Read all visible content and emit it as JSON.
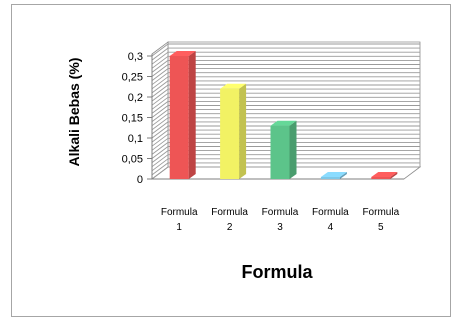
{
  "chart_data": {
    "type": "bar",
    "title": "",
    "xlabel": "Formula",
    "ylabel": "Alkali Bebas (%)",
    "ylim": [
      0,
      0.3
    ],
    "yticks": [
      "0",
      "0,05",
      "0,1",
      "0,15",
      "0,2",
      "0,25",
      "0,3"
    ],
    "grid": true,
    "categories": [
      [
        "Formula",
        "1"
      ],
      [
        "Formula",
        "2"
      ],
      [
        "Formula",
        "3"
      ],
      [
        "Formula",
        "4"
      ],
      [
        "Formula",
        "5"
      ]
    ],
    "values": [
      0.3,
      0.22,
      0.13,
      0.005,
      0.005
    ],
    "colors": [
      "#ee5555",
      "#f2f264",
      "#5cc48a",
      "#7ec8e8",
      "#ee5555"
    ]
  }
}
